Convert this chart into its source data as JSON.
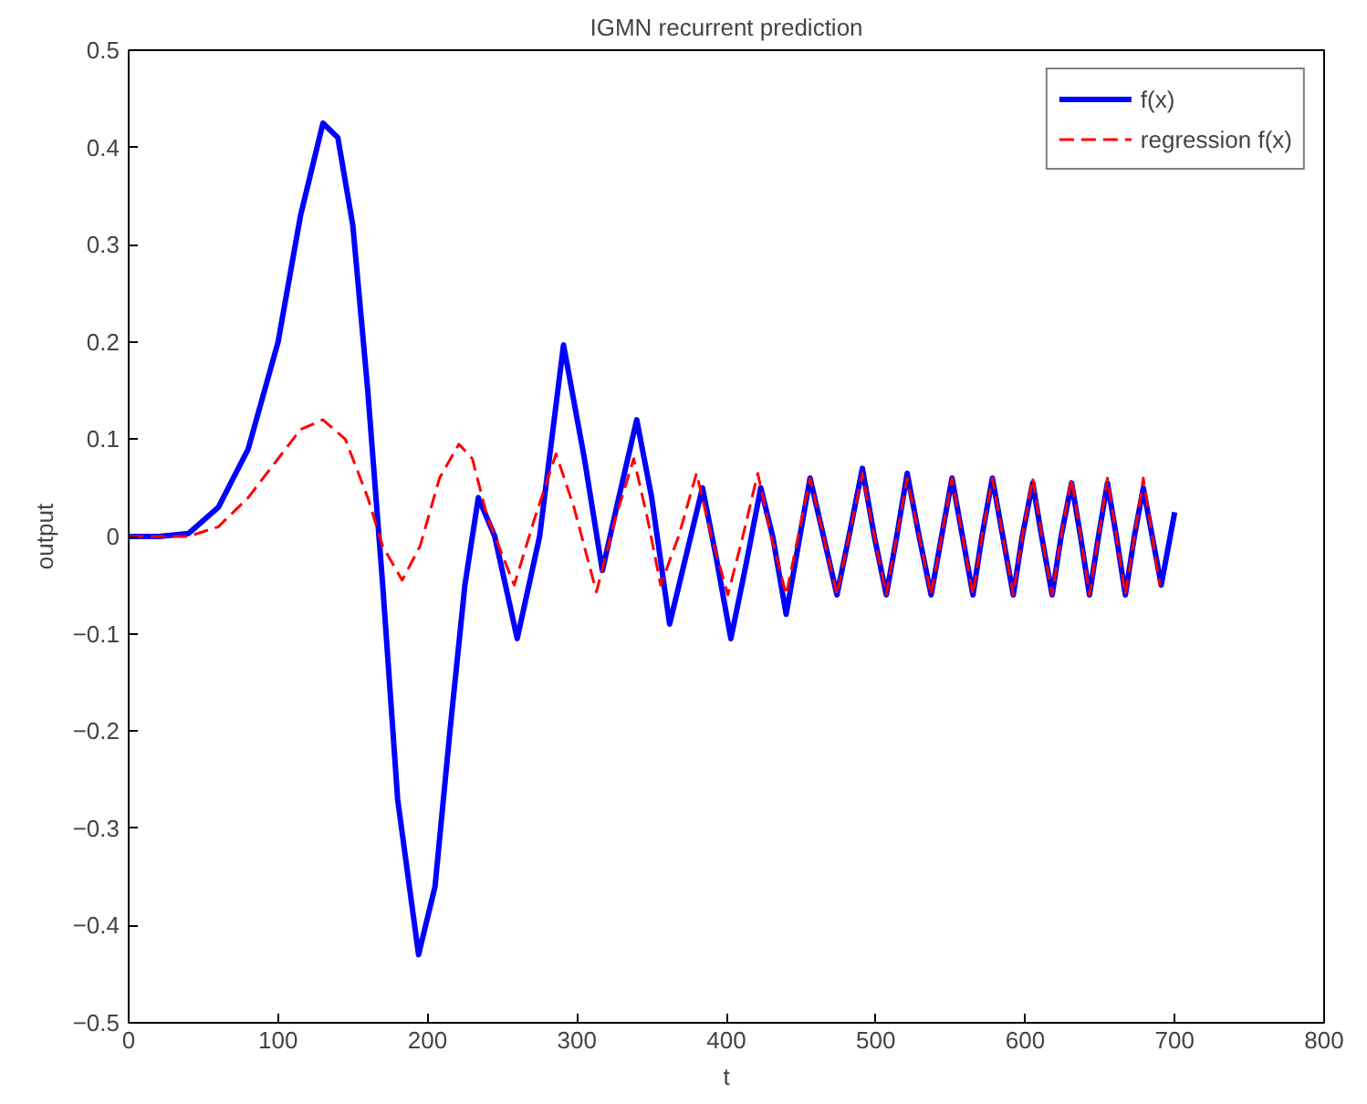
{
  "chart_data": {
    "type": "line",
    "title": "IGMN recurrent prediction",
    "xlabel": "t",
    "ylabel": "output",
    "xlim": [
      0,
      800
    ],
    "xticks": [
      0,
      100,
      200,
      300,
      400,
      500,
      600,
      700,
      800
    ],
    "ylim": [
      -0.5,
      0.5
    ],
    "yticks": [
      -0.5,
      -0.4,
      -0.3,
      -0.2,
      -0.1,
      0,
      0.1,
      0.2,
      0.3,
      0.4,
      0.5
    ],
    "grid": false,
    "legend": "top right",
    "series": [
      {
        "name": "f(x)",
        "color": "#0000ff",
        "line_style": "solid",
        "x": [
          0,
          20,
          40,
          60,
          80,
          100,
          115,
          130,
          140,
          150,
          160,
          170,
          180,
          194,
          205,
          215,
          225,
          234,
          245,
          260,
          275,
          291,
          305,
          317,
          328,
          340,
          350,
          362,
          373,
          384,
          393,
          403,
          413,
          423,
          431,
          440,
          448,
          456,
          465,
          474,
          482,
          491,
          499,
          507,
          514,
          521,
          529,
          537,
          544,
          551,
          558,
          565,
          571,
          578,
          585,
          592,
          598,
          605,
          611,
          618,
          624,
          631,
          637,
          643,
          649,
          655,
          661,
          667,
          673,
          679,
          685,
          691,
          700
        ],
        "values": [
          0,
          0,
          0.003,
          0.03,
          0.09,
          0.2,
          0.33,
          0.425,
          0.41,
          0.32,
          0.15,
          -0.05,
          -0.27,
          -0.43,
          -0.36,
          -0.2,
          -0.05,
          0.04,
          0.0,
          -0.105,
          0.0,
          0.197,
          0.08,
          -0.035,
          0.04,
          0.12,
          0.04,
          -0.09,
          -0.02,
          0.05,
          -0.02,
          -0.105,
          -0.03,
          0.05,
          0.0,
          -0.08,
          -0.01,
          0.06,
          0.0,
          -0.06,
          0.0,
          0.07,
          0.0,
          -0.06,
          0.0,
          0.065,
          0.0,
          -0.06,
          0.0,
          0.06,
          0.0,
          -0.06,
          0.0,
          0.06,
          0.0,
          -0.06,
          0.0,
          0.055,
          0,
          -0.06,
          0,
          0.055,
          0,
          -0.06,
          0,
          0.055,
          0,
          -0.06,
          0,
          0.05,
          0,
          -0.05,
          0.025
        ]
      },
      {
        "name": "regression f(x)",
        "color": "#ff0000",
        "line_style": "dashed",
        "x": [
          0,
          40,
          60,
          80,
          100,
          115,
          130,
          145,
          160,
          170,
          183,
          195,
          208,
          221,
          230,
          240,
          258,
          272,
          286,
          298,
          313,
          326,
          338,
          347,
          356,
          368,
          380,
          390,
          401,
          411,
          421,
          430,
          440,
          448,
          456,
          465,
          474,
          482,
          491,
          499,
          507,
          514,
          521,
          529,
          537,
          544,
          551,
          558,
          565,
          571,
          578,
          585,
          592,
          598,
          605,
          611,
          618,
          624,
          631,
          637,
          643,
          649,
          655,
          661,
          667,
          673,
          679,
          685,
          690
        ],
        "values": [
          0,
          0,
          0.01,
          0.04,
          0.08,
          0.11,
          0.12,
          0.1,
          0.04,
          -0.01,
          -0.045,
          -0.01,
          0.06,
          0.095,
          0.08,
          0.02,
          -0.05,
          0.02,
          0.085,
          0.03,
          -0.057,
          0.02,
          0.08,
          0.02,
          -0.05,
          0.0,
          0.065,
          0.0,
          -0.06,
          0.0,
          0.065,
          0.0,
          -0.06,
          0.0,
          0.06,
          0.0,
          -0.06,
          0.0,
          0.065,
          0.0,
          -0.06,
          0.0,
          0.06,
          0.0,
          -0.06,
          0.0,
          0.06,
          0.0,
          -0.06,
          0.0,
          0.06,
          0.0,
          -0.06,
          0.0,
          0.06,
          0,
          -0.06,
          0,
          0.06,
          0,
          -0.06,
          0,
          0.06,
          0,
          -0.06,
          0,
          0.06,
          0,
          -0.05
        ]
      }
    ]
  }
}
